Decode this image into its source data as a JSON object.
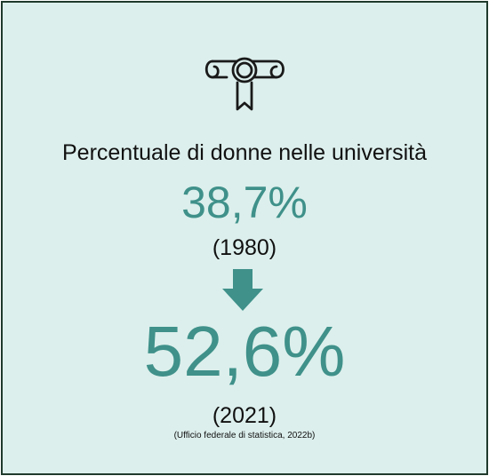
{
  "infographic": {
    "icon": "diploma-icon",
    "title": "Percentuale di donne nelle università",
    "before": {
      "value": "38,7%",
      "year": "(1980)"
    },
    "trend_icon": "arrow-down-icon",
    "after": {
      "value": "52,6%",
      "year": "(2021)"
    },
    "source": "(Ufficio federale di statistica, 2022b)"
  },
  "colors": {
    "background": "#dcefec",
    "border": "#1f3a2c",
    "accent": "#3f918a",
    "text": "#111111"
  }
}
